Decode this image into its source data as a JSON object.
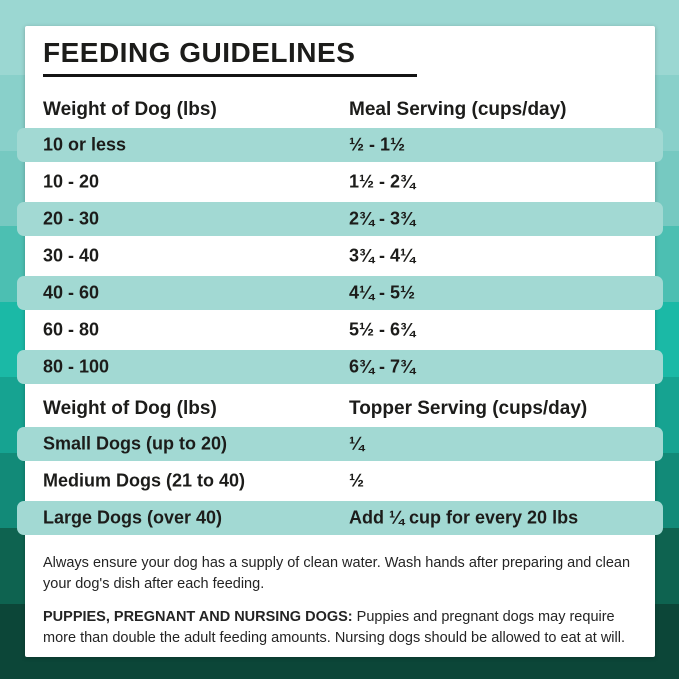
{
  "title": "FEEDING GUIDELINES",
  "meal_table": {
    "col1_header": "Weight of Dog (lbs)",
    "col2_header": "Meal Serving (cups/day)",
    "rows": [
      {
        "weight": "10 or less",
        "serving": "½ - 1½"
      },
      {
        "weight": "10 - 20",
        "serving": "1½ - 2¾"
      },
      {
        "weight": "20 - 30",
        "serving": "2¾ - 3¾"
      },
      {
        "weight": "30 - 40",
        "serving": "3¾ - 4¼"
      },
      {
        "weight": "40 - 60",
        "serving": "4¼ - 5½"
      },
      {
        "weight": "60 - 80",
        "serving": "5½ - 6¾"
      },
      {
        "weight": "80 - 100",
        "serving": "6¾ - 7¾"
      }
    ]
  },
  "topper_table": {
    "col1_header": "Weight of Dog (lbs)",
    "col2_header": "Topper Serving (cups/day)",
    "rows": [
      {
        "weight": "Small Dogs (up to 20)",
        "serving": "¼"
      },
      {
        "weight": "Medium Dogs (21 to 40)",
        "serving": "½"
      },
      {
        "weight": "Large Dogs (over 40)",
        "serving": "Add ¼ cup for every 20 lbs"
      }
    ]
  },
  "notes": {
    "water_note": "Always ensure your dog has a supply of clean water. Wash hands after preparing and clean your dog's dish after each feeding.",
    "special_note_label": "PUPPIES, PREGNANT AND NURSING DOGS:",
    "special_note_text": " Puppies and pregnant dogs may require more than double the adult feeding amounts. Nursing dogs should be allowed to eat at will."
  },
  "colors": {
    "card_background": "#ffffff",
    "row_highlight": "#a2d9d3",
    "text": "#1c1c1a",
    "background_bands": [
      "#9bd7d2",
      "#89d0ca",
      "#76c9c1",
      "#4cbfb2",
      "#1bb9a6",
      "#16a391",
      "#128a78",
      "#0e6350",
      "#0c4638"
    ]
  }
}
